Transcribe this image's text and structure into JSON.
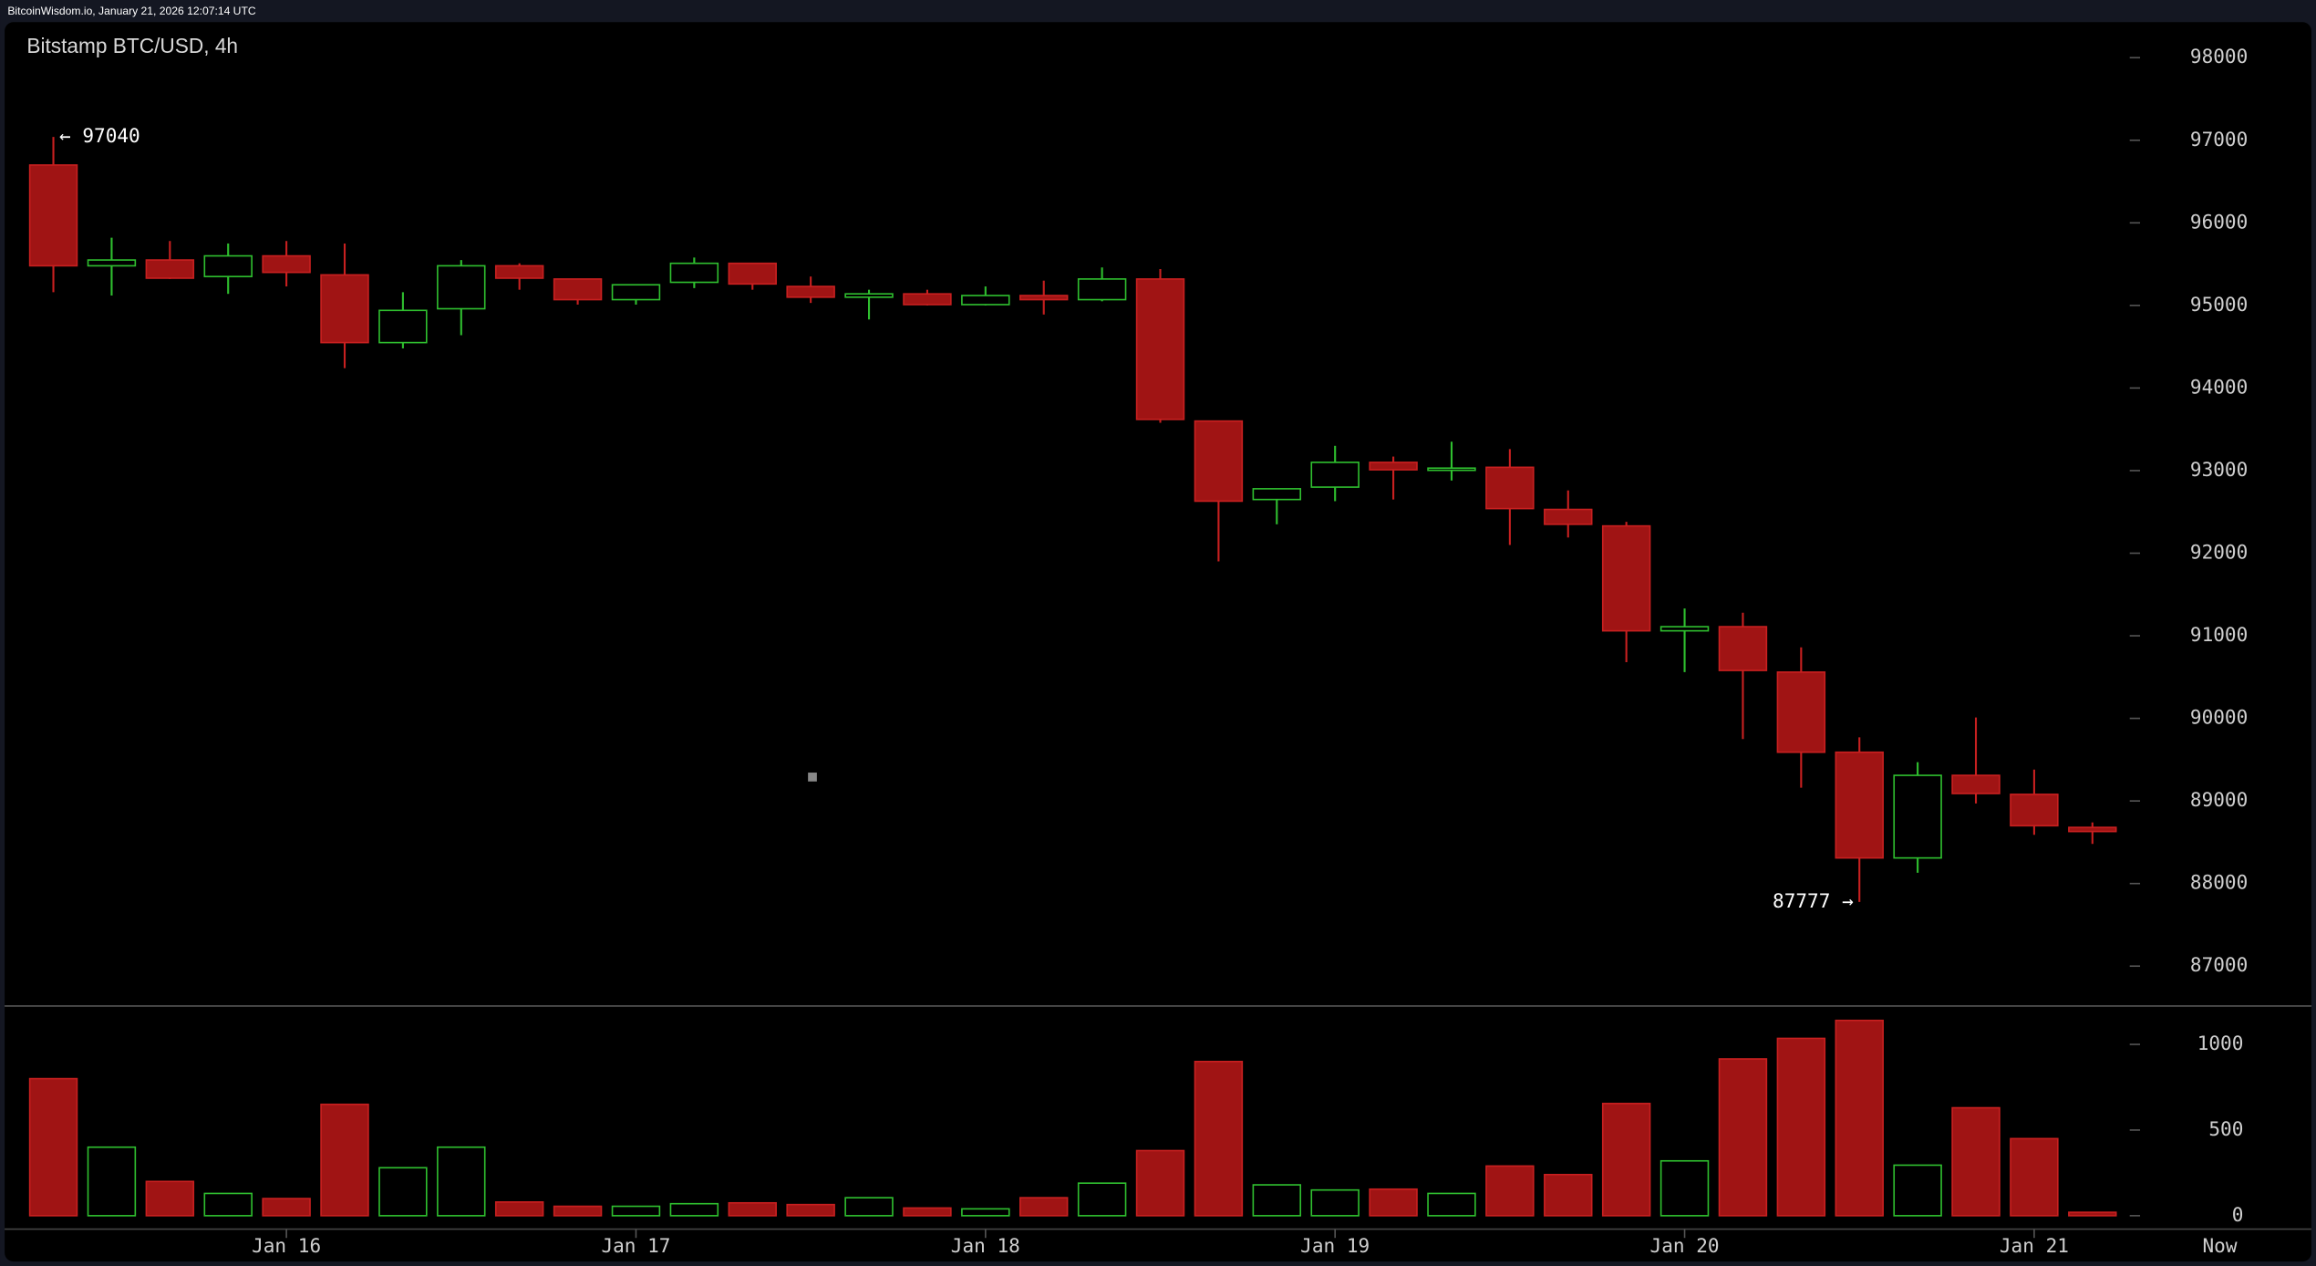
{
  "header": {
    "text": "BitcoinWisdom.io, January 21, 2026 12:07:14 UTC"
  },
  "chart_data": {
    "type": "candlestick",
    "title": "Bitstamp BTC/USD, 4h",
    "high_label": "← 97040",
    "low_label": "87777 →",
    "x_end_label": "Now",
    "categories": [
      null,
      null,
      null,
      null,
      "Jan 16",
      null,
      null,
      null,
      null,
      null,
      "Jan 17",
      null,
      null,
      null,
      null,
      null,
      "Jan 18",
      null,
      null,
      null,
      null,
      null,
      "Jan 19",
      null,
      null,
      null,
      null,
      null,
      "Jan 20",
      null,
      null,
      null,
      null,
      null,
      "Jan 21",
      null
    ],
    "open": [
      96700,
      95480,
      95550,
      95350,
      95600,
      95370,
      94550,
      94960,
      95480,
      95320,
      95070,
      95280,
      95510,
      95230,
      95100,
      95140,
      95010,
      95120,
      95070,
      95320,
      93600,
      92650,
      92800,
      93100,
      93010,
      93040,
      92530,
      92330,
      91060,
      91110,
      90560,
      89590,
      88310,
      89310,
      89080,
      88680
    ],
    "high": [
      97040,
      95820,
      95780,
      95750,
      95780,
      95750,
      95160,
      95550,
      95510,
      95320,
      95250,
      95580,
      95510,
      95350,
      95190,
      95190,
      95230,
      95300,
      95460,
      95440,
      93600,
      92780,
      93300,
      93170,
      93350,
      93260,
      92760,
      92380,
      91330,
      91280,
      90860,
      89770,
      89470,
      90010,
      89380,
      88740
    ],
    "low": [
      95160,
      95120,
      95320,
      95140,
      95230,
      94240,
      94480,
      94640,
      95190,
      95010,
      95010,
      95210,
      95190,
      95030,
      94830,
      95000,
      95000,
      94890,
      95050,
      93580,
      91900,
      92350,
      92630,
      92650,
      92880,
      92100,
      92190,
      90680,
      90560,
      89750,
      89160,
      87777,
      88130,
      88970,
      88590,
      88480
    ],
    "close": [
      95480,
      95550,
      95330,
      95600,
      95400,
      94550,
      94940,
      95480,
      95330,
      95070,
      95250,
      95510,
      95260,
      95100,
      95140,
      95010,
      95120,
      95070,
      95320,
      93620,
      92630,
      92780,
      93100,
      93010,
      93030,
      92540,
      92350,
      91060,
      91110,
      90580,
      89590,
      88310,
      89310,
      89090,
      88700,
      88630
    ],
    "volume": [
      800,
      400,
      200,
      130,
      100,
      650,
      280,
      400,
      80,
      55,
      55,
      70,
      75,
      65,
      105,
      45,
      40,
      105,
      190,
      380,
      900,
      180,
      150,
      155,
      130,
      290,
      240,
      655,
      320,
      915,
      1035,
      1140,
      295,
      630,
      450,
      20
    ],
    "up_color": "#2fbf2f",
    "down_color": "#a01414",
    "ylim": [
      86535,
      98430
    ],
    "yticks": [
      87000,
      88000,
      89000,
      90000,
      91000,
      92000,
      93000,
      94000,
      95000,
      96000,
      97000,
      98000
    ],
    "volume_ylim": [
      -78,
      1224
    ],
    "volume_yticks": [
      0,
      500,
      1000
    ]
  }
}
